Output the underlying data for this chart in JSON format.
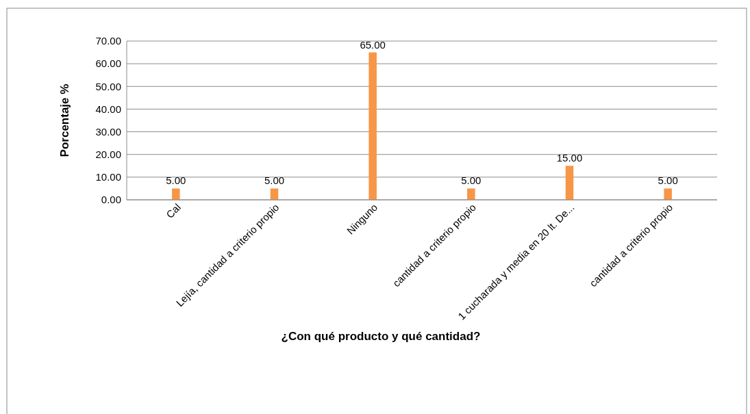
{
  "chart_data": {
    "type": "bar",
    "xlabel": "¿Con qué producto y qué cantidad?",
    "ylabel": "Porcentaje %",
    "categories": [
      "Cal",
      "Lejía, cantidad a criterio propio",
      "Ninguno",
      "cantidad a criterio propio",
      "1 cucharada y media en 20 lt. De...",
      "cantidad a criterio propio"
    ],
    "values": [
      5,
      5,
      65,
      5,
      15,
      5
    ],
    "value_labels": [
      "5.00",
      "5.00",
      "65.00",
      "5.00",
      "15.00",
      "5.00"
    ],
    "color": "#f79646",
    "ylim": [
      0,
      70
    ],
    "yticks": [
      {
        "value": 0,
        "label": "0.00"
      },
      {
        "value": 10,
        "label": "10.00"
      },
      {
        "value": 20,
        "label": "20.00"
      },
      {
        "value": 30,
        "label": "30.00"
      },
      {
        "value": 40,
        "label": "40.00"
      },
      {
        "value": 50,
        "label": "50.00"
      },
      {
        "value": 60,
        "label": "60.00"
      },
      {
        "value": 70,
        "label": "70.00"
      }
    ],
    "grid": "y"
  }
}
